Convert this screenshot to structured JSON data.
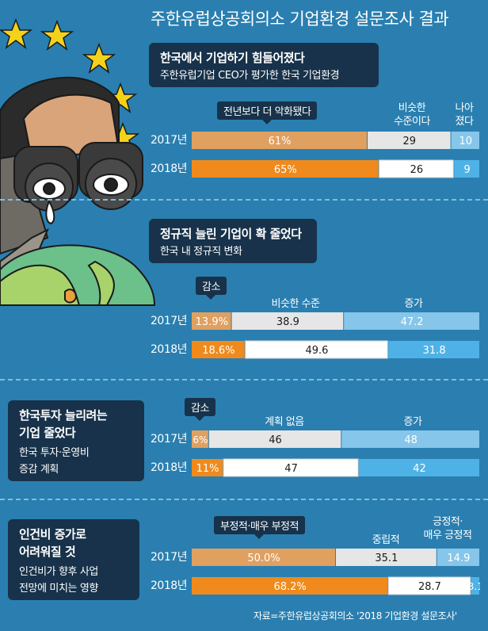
{
  "title": "주한유럽상공회의소 기업환경 설문조사 결과",
  "source": "자료=주한유럽상공회의소 '2018 기업환경 설문조사'",
  "colors": {
    "background": "#2a7fb0",
    "dark_box": "#17324a",
    "orange_2017": "#e0a060",
    "orange_2018": "#f08a1c",
    "gray_2017": "#e6e6e6",
    "white_2018": "#ffffff",
    "lightblue_2017": "#86c6ea",
    "blue_2018": "#4fb2e6"
  },
  "illustration": {
    "icons": [
      "eu-star-icon",
      "binoculars-man-icon",
      "globe-korea-icon"
    ]
  },
  "sections": [
    {
      "title": "한국에서 기업하기 힘들어졌다",
      "subtitle": "주한유럽기업 CEO가 평가한 한국 기업환경"
    },
    {
      "title": "정규직 늘린 기업이 확 줄었다",
      "subtitle": "한국 내 정규직 변화"
    },
    {
      "title": "한국투자 늘리려는 기업 줄었다",
      "subtitle_line1": "한국 투자·운영비",
      "subtitle_line2": "증감 계획",
      "title_line1": "한국투자 늘리려는",
      "title_line2": "기업 줄었다"
    },
    {
      "title_line1": "인건비 증가로",
      "title_line2": "어려워질 것",
      "subtitle_line1": "인건비가 향후 사업",
      "subtitle_line2": "전망에 미치는 영향"
    }
  ],
  "chart_data": [
    {
      "type": "bar",
      "stacked": true,
      "orientation": "horizontal",
      "categories": [
        "2017년",
        "2018년"
      ],
      "series": [
        {
          "name": "전년보다 더 악화됐다",
          "values": [
            61,
            65
          ],
          "labels": [
            "61%",
            "65%"
          ]
        },
        {
          "name": "비슷한 수준이다",
          "values": [
            29,
            26
          ],
          "labels": [
            "29",
            "26"
          ]
        },
        {
          "name": "나아 졌다",
          "values": [
            10,
            9
          ],
          "labels": [
            "10",
            "9"
          ]
        }
      ],
      "header_labels": [
        "전년보다 더 악화됐다",
        "비슷한\n수준이다",
        "나아\n졌다"
      ]
    },
    {
      "type": "bar",
      "stacked": true,
      "orientation": "horizontal",
      "categories": [
        "2017년",
        "2018년"
      ],
      "series": [
        {
          "name": "감소",
          "values": [
            13.9,
            18.6
          ],
          "labels": [
            "13.9%",
            "18.6%"
          ]
        },
        {
          "name": "비슷한 수준",
          "values": [
            38.9,
            49.6
          ],
          "labels": [
            "38.9",
            "49.6"
          ]
        },
        {
          "name": "증가",
          "values": [
            47.2,
            31.8
          ],
          "labels": [
            "47.2",
            "31.8"
          ]
        }
      ],
      "header_labels": [
        "감소",
        "비슷한 수준",
        "증가"
      ]
    },
    {
      "type": "bar",
      "stacked": true,
      "orientation": "horizontal",
      "categories": [
        "2017년",
        "2018년"
      ],
      "series": [
        {
          "name": "감소",
          "values": [
            6,
            11
          ],
          "labels": [
            "6%",
            "11%"
          ]
        },
        {
          "name": "계획 없음",
          "values": [
            46,
            47
          ],
          "labels": [
            "46",
            "47"
          ]
        },
        {
          "name": "증가",
          "values": [
            48,
            42
          ],
          "labels": [
            "48",
            "42"
          ]
        }
      ],
      "header_labels": [
        "감소",
        "계획 없음",
        "증가"
      ]
    },
    {
      "type": "bar",
      "stacked": true,
      "orientation": "horizontal",
      "categories": [
        "2017년",
        "2018년"
      ],
      "series": [
        {
          "name": "부정적·매우 부정적",
          "values": [
            50.0,
            68.2
          ],
          "labels": [
            "50.0%",
            "68.2%"
          ]
        },
        {
          "name": "중립적",
          "values": [
            35.1,
            28.7
          ],
          "labels": [
            "35.1",
            "28.7"
          ]
        },
        {
          "name": "긍정적·매우 긍정적",
          "values": [
            14.9,
            3.1
          ],
          "labels": [
            "14.9",
            "3.1"
          ]
        }
      ],
      "header_labels": [
        "부정적·매우 부정적",
        "중립적",
        "긍정적·\n매우 긍정적"
      ]
    }
  ]
}
